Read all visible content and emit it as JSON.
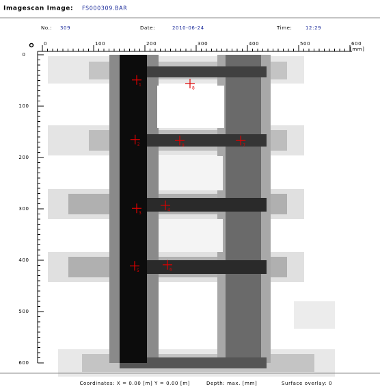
{
  "header": {
    "title": "Imagescan Image:",
    "file": "FS000309.BAR"
  },
  "info": {
    "no_label": "No.:",
    "no": "309",
    "date_label": "Date:",
    "date": "2010-06-24",
    "time_label": "Time:",
    "time": "12:29"
  },
  "image": {
    "unit": "[mm]",
    "xlim": [
      0,
      600
    ],
    "ylim": [
      0,
      600
    ],
    "xticks": [
      0,
      100,
      200,
      300,
      400,
      500,
      600
    ],
    "yticks": [
      0,
      100,
      200,
      300,
      400,
      500,
      600
    ],
    "markers": [
      {
        "label": "1",
        "x": 184,
        "y": 49
      },
      {
        "label": "2",
        "x": 181,
        "y": 165
      },
      {
        "label": "3",
        "x": 184,
        "y": 299
      },
      {
        "label": "4",
        "x": 240,
        "y": 293
      },
      {
        "label": "5",
        "x": 180,
        "y": 411
      },
      {
        "label": "6",
        "x": 244,
        "y": 409
      },
      {
        "label": "7",
        "x": 387,
        "y": 167
      },
      {
        "label": "8",
        "x": 288,
        "y": 56
      },
      {
        "label": "9",
        "x": 268,
        "y": 167
      }
    ]
  },
  "footer": {
    "coordinates": "Coordinates: X = 0.00 [m]  Y = 0.00 [m]",
    "depth": "Depth: max. [mm]",
    "overlay": "Surface overlay: 0"
  }
}
